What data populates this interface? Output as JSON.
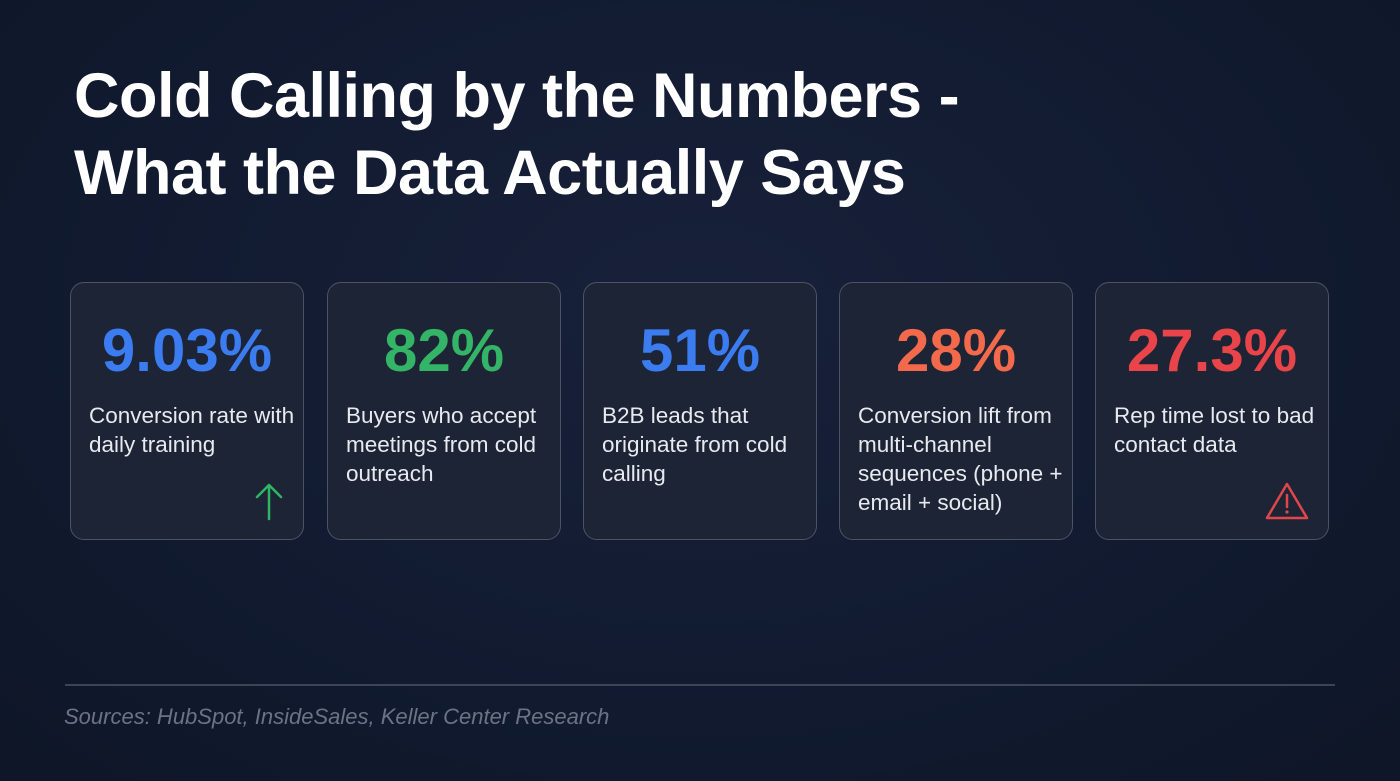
{
  "header": {
    "title": "Cold Calling by the Numbers - What the Data Actually Says"
  },
  "cards": [
    {
      "value": "9.03%",
      "description": "Conversion rate with daily training"
    },
    {
      "value": "82%",
      "description": "Buyers who accept meetings from cold outreach"
    },
    {
      "value": "51%",
      "description": "B2B leads that originate from cold calling"
    },
    {
      "value": "28%",
      "description": "Conversion lift from multi-channel sequences (phone + email + social)"
    },
    {
      "value": "27.3%",
      "description": "Rep time lost to bad contact data"
    }
  ],
  "footer": {
    "sources": "Sources: HubSpot, InsideSales, Keller Center Research"
  }
}
